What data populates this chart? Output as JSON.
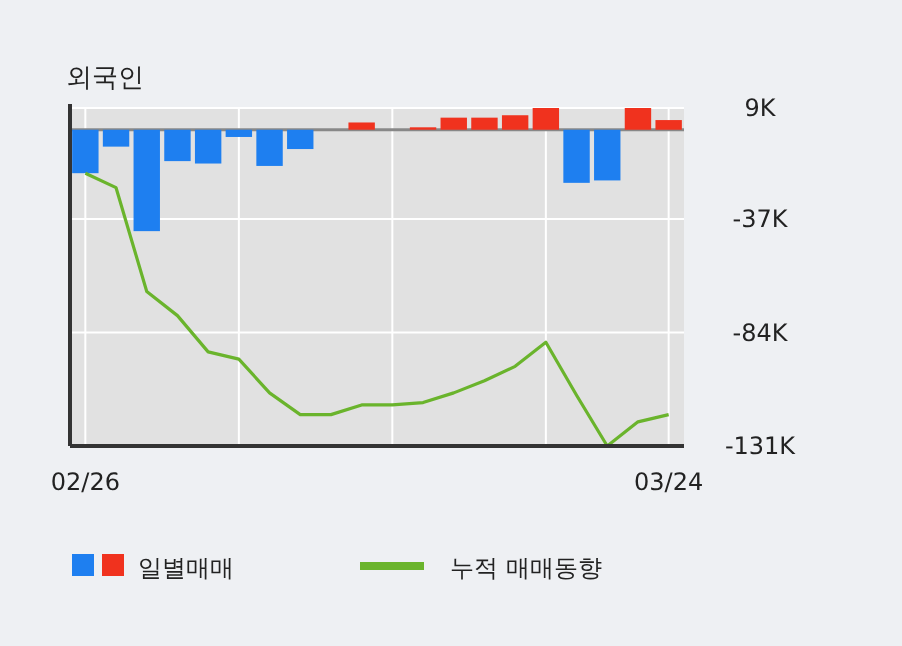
{
  "chart_data": {
    "type": "bar",
    "title": "외국인",
    "categories": [
      "02/26",
      null,
      null,
      null,
      null,
      null,
      null,
      null,
      null,
      null,
      null,
      null,
      null,
      null,
      null,
      null,
      null,
      null,
      null,
      "03/24"
    ],
    "series": [
      {
        "name": "일별매매",
        "colors": [
          "#1e7ff0",
          "#1e7ff0",
          "#1e7ff0",
          "#1e7ff0",
          "#1e7ff0",
          "#1e7ff0",
          "#1e7ff0",
          "#1e7ff0",
          "#1e7ff0",
          "#f0321e",
          "#f0321e",
          "#f0321e",
          "#f0321e",
          "#f0321e",
          "#f0321e",
          "#f0321e",
          "#1e7ff0",
          "#1e7ff0",
          "#f0321e",
          "#f0321e"
        ],
        "values": [
          -18,
          -7,
          -42,
          -13,
          -14,
          -3,
          -15,
          -8,
          0,
          3,
          0,
          1,
          5,
          5,
          6,
          9,
          -22,
          -21,
          9,
          4
        ]
      },
      {
        "name": "누적 매매동향",
        "type": "line",
        "color": "#6ab42c",
        "values": [
          -18,
          -24,
          -67,
          -77,
          -92,
          -95,
          -109,
          -118,
          -118,
          -114,
          -114,
          -113,
          -109,
          -104,
          -98,
          -88,
          -110,
          -131,
          -121,
          -118
        ]
      }
    ],
    "ylim": [
      -131,
      9
    ],
    "yticks": [
      {
        "value": 9,
        "label": "9K"
      },
      {
        "value": -37,
        "label": "-37K"
      },
      {
        "value": -84,
        "label": "-84K"
      },
      {
        "value": -131,
        "label": "-131K"
      }
    ],
    "grid": true,
    "legend": "bottom"
  }
}
